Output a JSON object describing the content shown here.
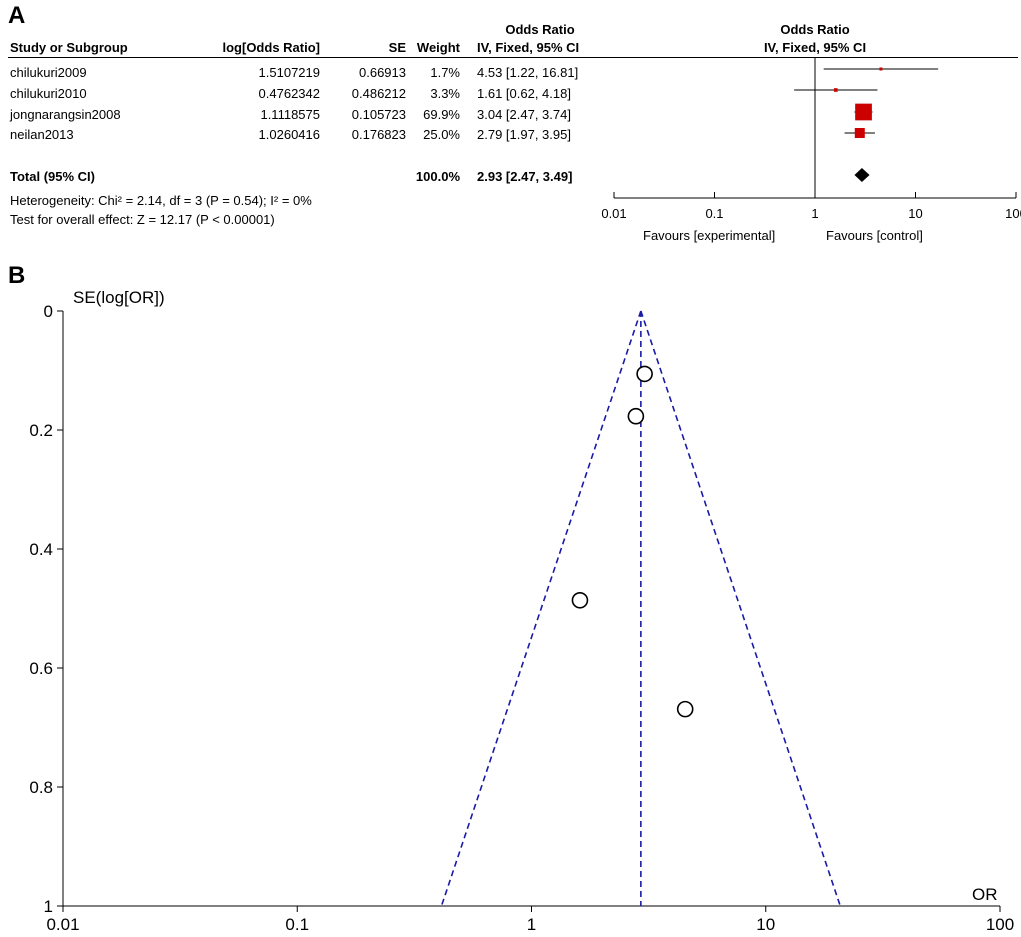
{
  "panels": {
    "a": "A",
    "b": "B"
  },
  "forest": {
    "header": {
      "col_study": "Study or Subgroup",
      "col_logor": "log[Odds Ratio]",
      "col_se": "SE",
      "col_weight": "Weight",
      "col_or_title": "Odds Ratio",
      "col_or_method": "IV, Fixed, 95% CI",
      "plot_title": "Odds Ratio",
      "plot_method": "IV, Fixed, 95% CI"
    },
    "rows": [
      {
        "study": "chilukuri2009",
        "logor": "1.5107219",
        "se": "0.66913",
        "weight": "1.7%",
        "ci_text": "4.53 [1.22, 16.81]"
      },
      {
        "study": "chilukuri2010",
        "logor": "0.4762342",
        "se": "0.486212",
        "weight": "3.3%",
        "ci_text": "1.61 [0.62, 4.18]"
      },
      {
        "study": "jongnarangsin2008",
        "logor": "1.1118575",
        "se": "0.105723",
        "weight": "69.9%",
        "ci_text": "3.04 [2.47, 3.74]"
      },
      {
        "study": "neilan2013",
        "logor": "1.0260416",
        "se": "0.176823",
        "weight": "25.0%",
        "ci_text": "2.79 [1.97, 3.95]"
      }
    ],
    "total": {
      "label": "Total (95% CI)",
      "weight": "100.0%",
      "ci_text": "2.93 [2.47, 3.49]"
    },
    "heterogeneity": "Heterogeneity: Chi² = 2.14, df = 3 (P = 0.54); I² = 0%",
    "overall_effect": "Test for overall effect: Z = 12.17 (P < 0.00001)",
    "favours_left": "Favours [experimental]",
    "favours_right": "Favours [control]"
  },
  "chart_data": [
    {
      "type": "forest",
      "x_scale": "log",
      "x_ticks": [
        0.01,
        0.1,
        1,
        10,
        100
      ],
      "x_tick_labels": [
        "0.01",
        "0.1",
        "1",
        "10",
        "100"
      ],
      "studies": [
        {
          "name": "chilukuri2009",
          "or": 4.53,
          "lo": 1.22,
          "hi": 16.81,
          "weight": 1.7
        },
        {
          "name": "chilukuri2010",
          "or": 1.61,
          "lo": 0.62,
          "hi": 4.18,
          "weight": 3.3
        },
        {
          "name": "jongnarangsin2008",
          "or": 3.04,
          "lo": 2.47,
          "hi": 3.74,
          "weight": 69.9
        },
        {
          "name": "neilan2013",
          "or": 2.79,
          "lo": 1.97,
          "hi": 3.95,
          "weight": 25.0
        }
      ],
      "pooled": {
        "or": 2.93,
        "lo": 2.47,
        "hi": 3.49
      },
      "colors": {
        "square": "#cc0000",
        "diamond": "#000000"
      }
    },
    {
      "type": "scatter",
      "subtype": "funnel",
      "ylabel": "SE(log[OR])",
      "xlabel": "OR",
      "x_scale": "log",
      "xlim": [
        0.01,
        100
      ],
      "ylim": [
        0,
        1
      ],
      "y_reversed": true,
      "x_ticks": [
        0.01,
        0.1,
        1,
        10,
        100
      ],
      "x_tick_labels": [
        "0.01",
        "0.1",
        "1",
        "10",
        "100"
      ],
      "y_ticks": [
        0,
        0.2,
        0.4,
        0.6,
        0.8,
        1
      ],
      "y_tick_labels": [
        "0",
        "0.2",
        "0.4",
        "0.6",
        "0.8",
        "1"
      ],
      "pooled_or": 2.93,
      "points": [
        {
          "or": 4.53,
          "se": 0.66913
        },
        {
          "or": 1.61,
          "se": 0.486212
        },
        {
          "or": 3.04,
          "se": 0.105723
        },
        {
          "or": 2.79,
          "se": 0.176823
        }
      ],
      "colors": {
        "funnel": "#1a1aa8",
        "points": "#000000"
      }
    }
  ]
}
